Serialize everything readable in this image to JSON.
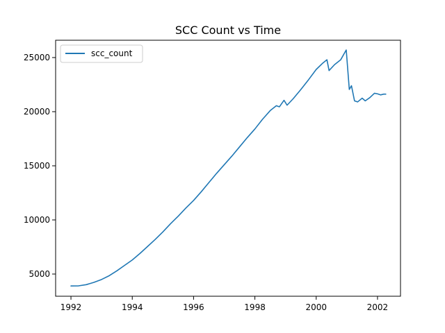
{
  "chart_data": {
    "type": "line",
    "title": "SCC Count vs Time",
    "xlabel": "",
    "ylabel": "",
    "xlim": [
      1991.5,
      2002.75
    ],
    "ylim": [
      2950,
      26600
    ],
    "x_ticks": [
      1992,
      1994,
      1996,
      1998,
      2000,
      2002
    ],
    "y_ticks": [
      5000,
      10000,
      15000,
      20000,
      25000
    ],
    "grid": false,
    "legend_position": "top-left",
    "series": [
      {
        "name": "scc_count",
        "color": "#1f77b4",
        "x": [
          1992.0,
          1992.25,
          1992.5,
          1992.75,
          1993.0,
          1993.25,
          1993.5,
          1993.75,
          1994.0,
          1994.25,
          1994.5,
          1994.75,
          1995.0,
          1995.25,
          1995.5,
          1995.75,
          1996.0,
          1996.25,
          1996.5,
          1996.75,
          1997.0,
          1997.25,
          1997.5,
          1997.75,
          1998.0,
          1998.25,
          1998.5,
          1998.7,
          1998.8,
          1998.95,
          1999.05,
          1999.25,
          1999.5,
          1999.75,
          2000.0,
          2000.2,
          2000.35,
          2000.42,
          2000.6,
          2000.8,
          2000.98,
          2001.08,
          2001.15,
          2001.25,
          2001.35,
          2001.5,
          2001.6,
          2001.75,
          2001.9,
          2002.0,
          2002.1,
          2002.2,
          2002.27
        ],
        "values": [
          3900,
          3910,
          4020,
          4230,
          4500,
          4850,
          5300,
          5800,
          6300,
          6900,
          7550,
          8200,
          8900,
          9650,
          10350,
          11100,
          11800,
          12600,
          13450,
          14300,
          15100,
          15900,
          16750,
          17600,
          18400,
          19300,
          20100,
          20550,
          20450,
          21050,
          20600,
          21200,
          22050,
          22950,
          23900,
          24450,
          24800,
          23800,
          24350,
          24800,
          25700,
          22050,
          22400,
          21000,
          20900,
          21250,
          21000,
          21300,
          21700,
          21650,
          21550,
          21620,
          21620
        ]
      }
    ]
  }
}
